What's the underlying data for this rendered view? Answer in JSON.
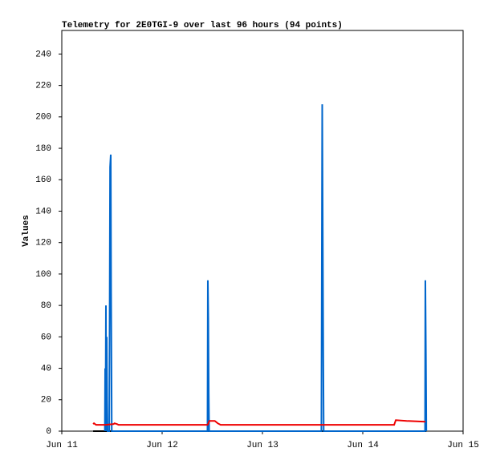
{
  "chart_data": {
    "type": "line",
    "title": "Telemetry for 2E0TGI-9 over last 96 hours (94 points)",
    "y_label": "Values",
    "xlim": [
      0,
      96
    ],
    "xticks": [
      {
        "value": 0,
        "label": "Jun 11"
      },
      {
        "value": 24,
        "label": "Jun 12"
      },
      {
        "value": 48,
        "label": "Jun 13"
      },
      {
        "value": 72,
        "label": "Jun 14"
      },
      {
        "value": 96,
        "label": "Jun 15"
      }
    ],
    "ylim": [
      0,
      255
    ],
    "yticks": [
      0,
      20,
      40,
      60,
      80,
      100,
      120,
      140,
      160,
      180,
      200,
      220,
      240
    ],
    "grid": false,
    "series": [
      {
        "color": "#000000",
        "x": [
          7.5,
          87.2
        ],
        "values": [
          0,
          0
        ]
      },
      {
        "color": "#0066cc",
        "x": [
          10.3,
          10.37,
          10.45,
          10.56,
          10.62,
          10.75,
          10.85,
          10.95,
          11.35,
          11.45,
          11.55,
          11.71,
          11.8,
          11.95,
          12.1,
          34.85,
          34.94,
          35.05,
          35.15,
          35.25,
          62.1,
          62.2,
          62.3,
          62.4,
          62.55,
          62.65,
          86.9,
          86.97,
          87.1,
          87.2
        ],
        "values": [
          0,
          40,
          0,
          80,
          0,
          60,
          20,
          0,
          0,
          80,
          168,
          176,
          88,
          0,
          0,
          0,
          96,
          72,
          24,
          0,
          0,
          104,
          208,
          144,
          48,
          0,
          0,
          96,
          48,
          0
        ]
      },
      {
        "color": "#ee0000",
        "x": [
          7.5,
          7.7,
          8.2,
          10.5,
          12.4,
          12.6,
          13.2,
          13.6,
          34.9,
          35.3,
          36.6,
          37.3,
          38,
          79.5,
          79.9,
          82.5,
          87
        ],
        "values": [
          4.5,
          5,
          4,
          4,
          4.5,
          5,
          4.5,
          4,
          4,
          6.5,
          6.5,
          5,
          4,
          4,
          7,
          6.5,
          6
        ]
      }
    ]
  }
}
